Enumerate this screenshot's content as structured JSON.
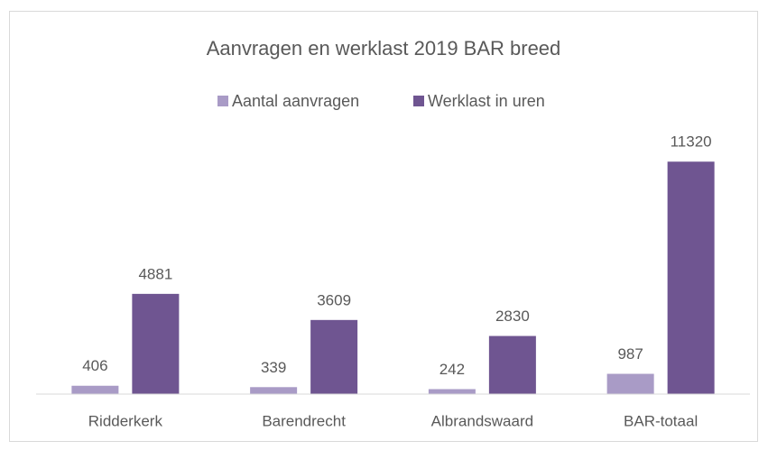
{
  "chart_data": {
    "type": "bar",
    "title": "Aanvragen en werklast 2019 BAR breed",
    "categories": [
      "Ridderkerk",
      "Barendrecht",
      "Albrandswaard",
      "BAR-totaal"
    ],
    "series": [
      {
        "name": "Aantal aanvragen",
        "color": "#a99bc6",
        "values": [
          406,
          339,
          242,
          987
        ]
      },
      {
        "name": "Werklast in uren",
        "color": "#6f5591",
        "values": [
          4881,
          3609,
          2830,
          11320
        ]
      }
    ],
    "ylim": [
      0,
      13000
    ],
    "legend": "top"
  }
}
